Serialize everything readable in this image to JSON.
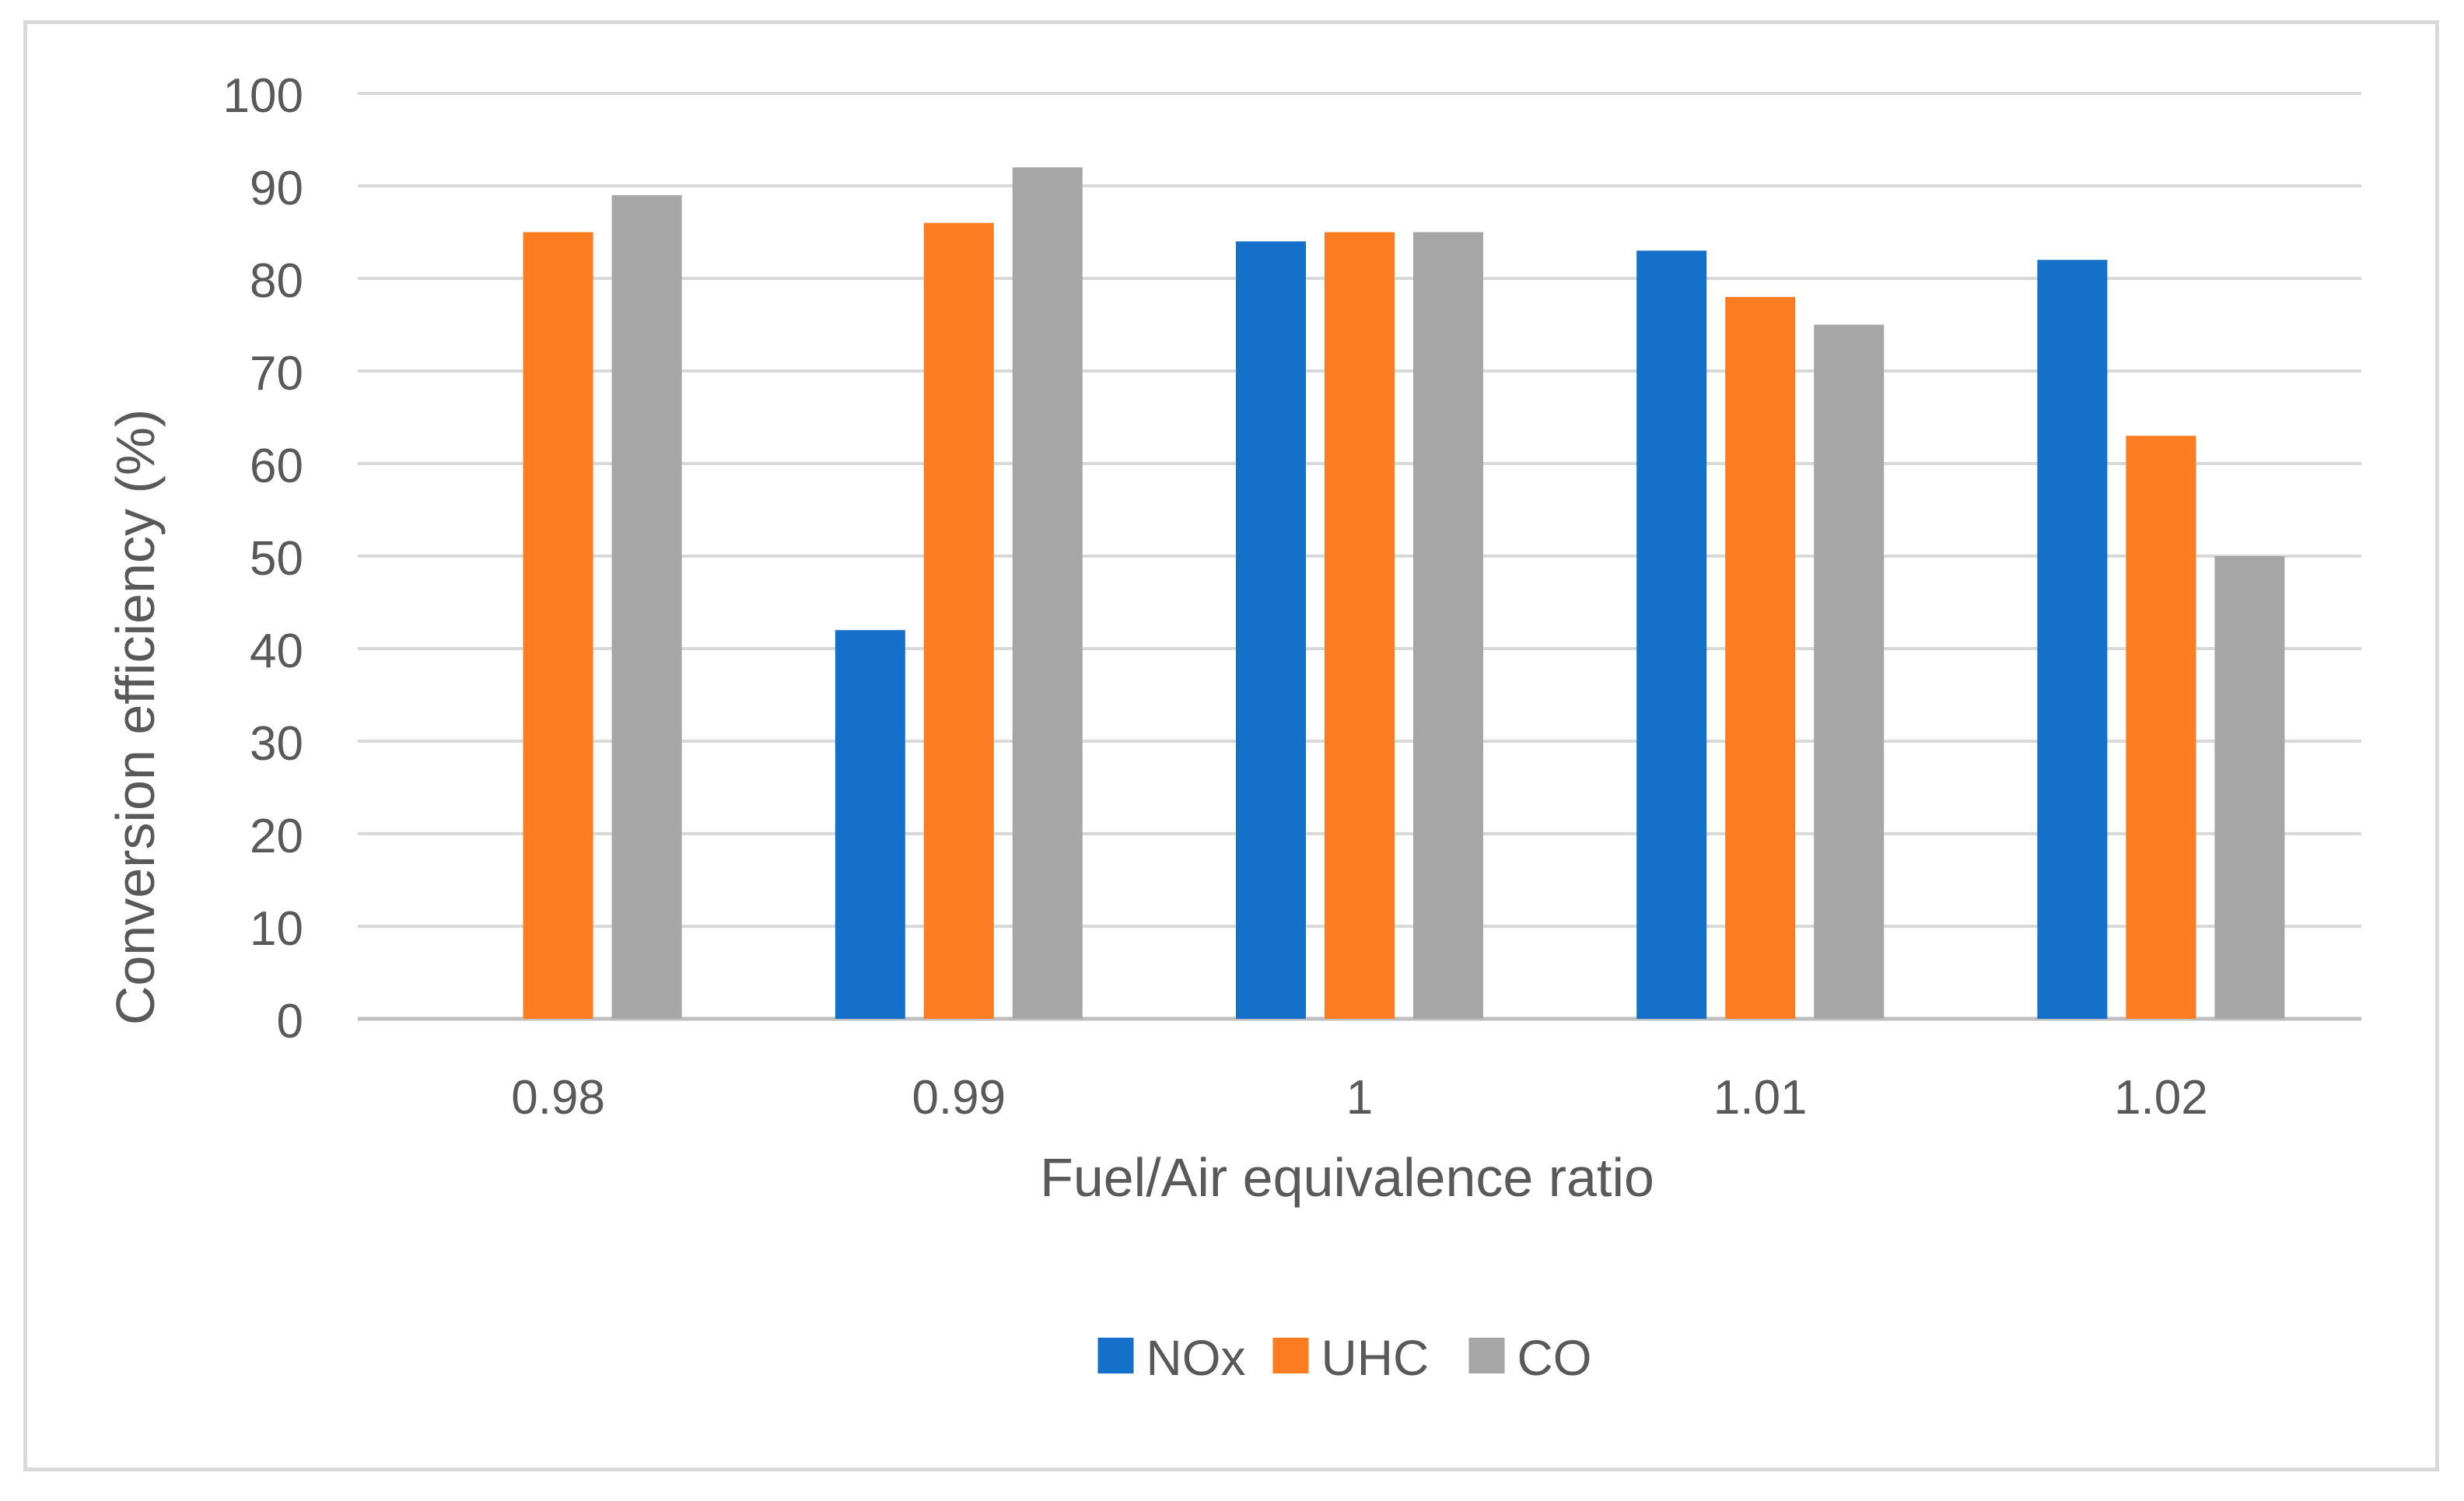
{
  "chart_data": {
    "type": "bar",
    "title": "",
    "xlabel": "Fuel/Air equivalence ratio",
    "ylabel": "Conversion efficiency (%)",
    "ylim": [
      0,
      100
    ],
    "ytick_step": 10,
    "yticks": [
      "0",
      "10",
      "20",
      "30",
      "40",
      "50",
      "60",
      "70",
      "80",
      "90",
      "100"
    ],
    "grid": true,
    "legend_position": "bottom",
    "categories": [
      "0.98",
      "0.99",
      "1",
      "1.01",
      "1.02"
    ],
    "series": [
      {
        "name": "NOx",
        "color": "#1570c9",
        "values": [
          null,
          42,
          84,
          83,
          82
        ]
      },
      {
        "name": "UHC",
        "color": "#fb7c21",
        "values": [
          85,
          86,
          85,
          78,
          63
        ]
      },
      {
        "name": "CO",
        "color": "#a6a6a6",
        "values": [
          89,
          92,
          85,
          75,
          50
        ]
      }
    ]
  }
}
